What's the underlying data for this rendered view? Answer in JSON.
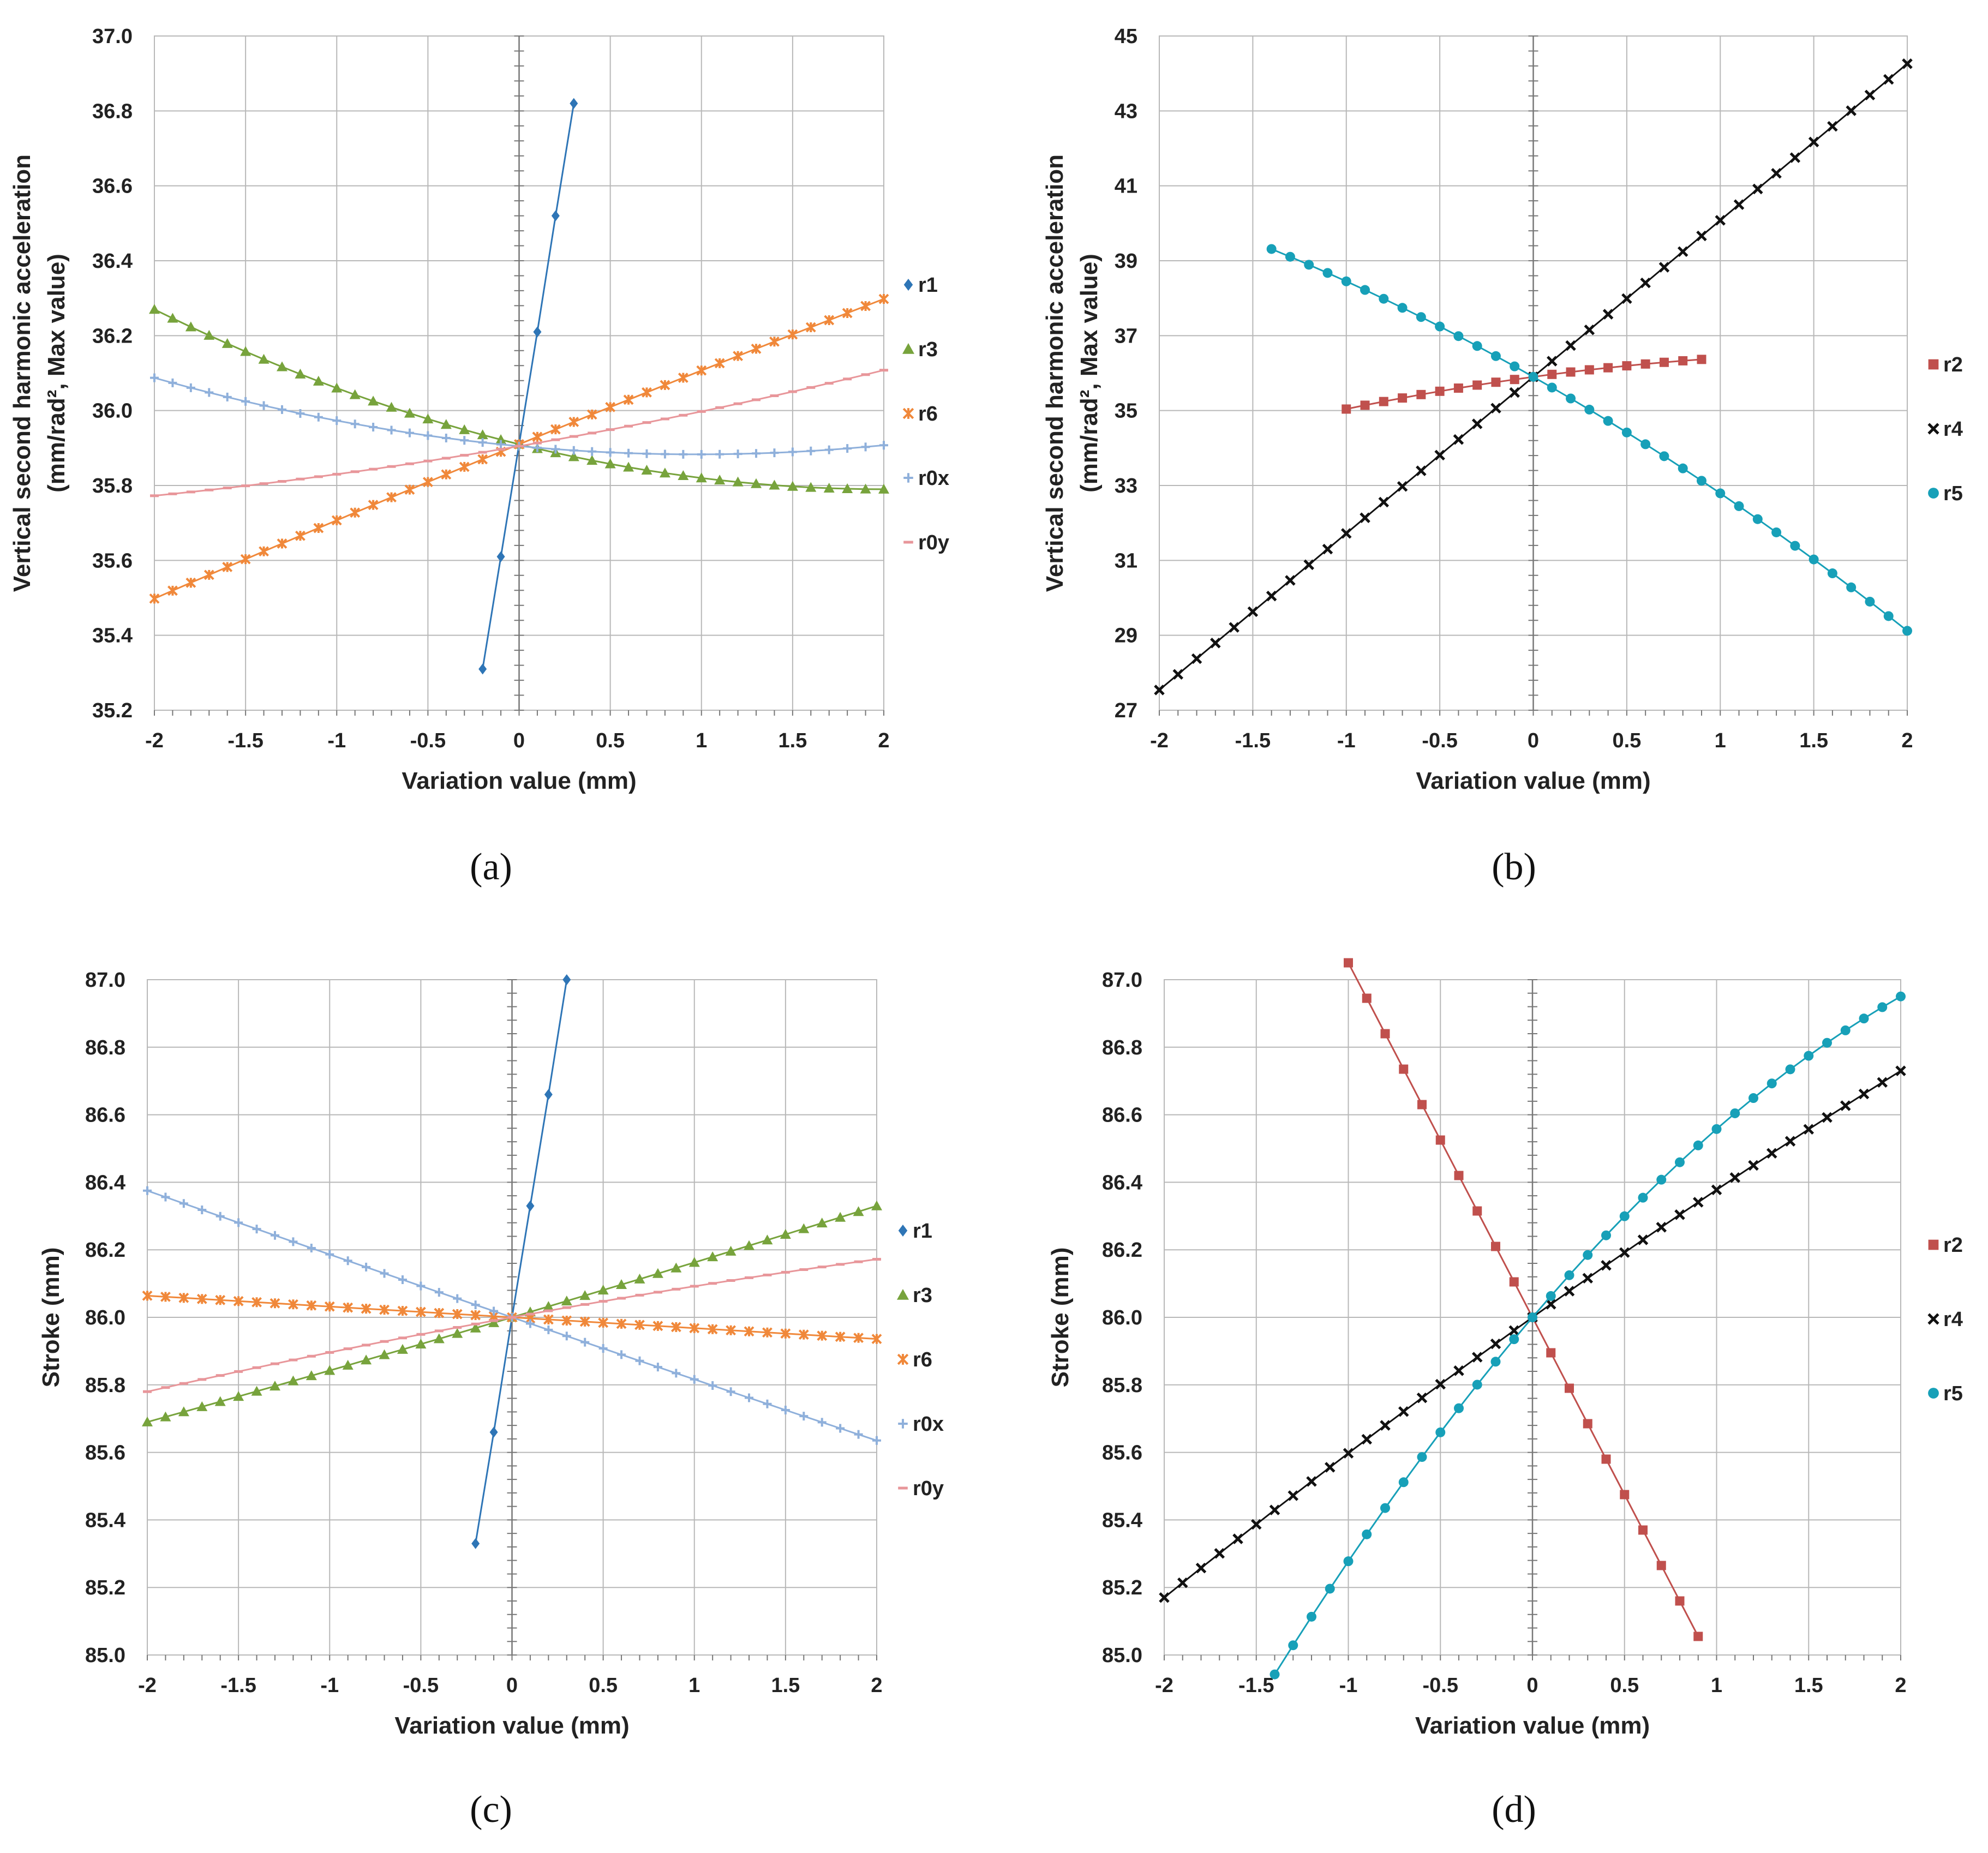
{
  "figure": {
    "panel_labels": [
      "(a)",
      "(b)",
      "(c)",
      "(d)"
    ]
  },
  "colors": {
    "r1": "#2e75b6",
    "r2": "#c0504d",
    "r3": "#77a33c",
    "r4": "#111111",
    "r5": "#17a0b8",
    "r6": "#f0883a",
    "r0x": "#8fb0db",
    "r0y": "#e8969a"
  },
  "chart_data": [
    {
      "type": "line",
      "panel": "(a)",
      "title": "",
      "xlabel": "Variation value (mm)",
      "ylabel": [
        "Vertical second harmonic acceleration",
        "(mm/rad², Max value)"
      ],
      "xlim": [
        -2,
        2
      ],
      "ylim": [
        35.2,
        37.0
      ],
      "xticks": [
        -2,
        -1.5,
        -1,
        -0.5,
        0,
        0.5,
        1,
        1.5,
        2
      ],
      "xtick_labels": [
        "-2",
        "-1.5",
        "-1",
        "-0.5",
        "0",
        "0.5",
        "1",
        "1.5",
        "2"
      ],
      "yticks": [
        35.2,
        35.4,
        35.6,
        35.8,
        36.0,
        36.2,
        36.4,
        36.6,
        36.8,
        37.0
      ],
      "ytick_labels": [
        "35.2",
        "35.4",
        "35.6",
        "35.8",
        "36.0",
        "36.2",
        "36.4",
        "36.6",
        "36.8",
        "37.0"
      ],
      "series": [
        {
          "name": "r1",
          "marker": "diamond",
          "x": [
            -0.2,
            -0.1,
            0,
            0.1,
            0.2,
            0.3
          ],
          "y": [
            35.31,
            35.61,
            35.91,
            36.21,
            36.52,
            36.82
          ]
        },
        {
          "name": "r3",
          "marker": "triangle",
          "start": -2,
          "end": 2,
          "step": 0.1,
          "fn": "quad",
          "params": {
            "y0": 35.91,
            "a": -0.12,
            "b": 0.03
          }
        },
        {
          "name": "r6",
          "marker": "star",
          "start": -2,
          "end": 2,
          "step": 0.1,
          "fn": "quad",
          "params": {
            "y0": 35.91,
            "a": 0.2,
            "b": -0.003
          }
        },
        {
          "name": "r0x",
          "marker": "plus",
          "start": -2,
          "end": 2,
          "step": 0.1,
          "fn": "quad",
          "params": {
            "y0": 35.905,
            "a": -0.045,
            "b": 0.0231
          }
        },
        {
          "name": "r0y",
          "marker": "dash",
          "start": -2,
          "end": 2,
          "step": 0.1,
          "fn": "quad",
          "params": {
            "y0": 35.905,
            "a": 0.0838,
            "b": 0.0088
          }
        }
      ],
      "legend": [
        "r1",
        "r3",
        "r6",
        "r0x",
        "r0y"
      ],
      "legend_position": "right"
    },
    {
      "type": "line",
      "panel": "(b)",
      "title": "",
      "xlabel": "Variation value (mm)",
      "ylabel": [
        "Vertical second harmonic acceleration",
        "(mm/rad², Max value)"
      ],
      "xlim": [
        -2,
        2
      ],
      "ylim": [
        27,
        45
      ],
      "xticks": [
        -2,
        -1.5,
        -1,
        -0.5,
        0,
        0.5,
        1,
        1.5,
        2
      ],
      "xtick_labels": [
        "-2",
        "-1.5",
        "-1",
        "-0.5",
        "0",
        "0.5",
        "1",
        "1.5",
        "2"
      ],
      "yticks": [
        27,
        29,
        31,
        33,
        35,
        37,
        39,
        41,
        43,
        45
      ],
      "ytick_labels": [
        "27",
        "29",
        "31",
        "33",
        "35",
        "37",
        "39",
        "41",
        "43",
        "45"
      ],
      "series": [
        {
          "name": "r2",
          "marker": "square",
          "start": -1,
          "end": 0.9,
          "step": 0.1,
          "fn": "quad",
          "params": {
            "y0": 35.9,
            "a": 0.68,
            "b": -0.18
          }
        },
        {
          "name": "r4",
          "marker": "x",
          "start": -2,
          "end": 2,
          "step": 0.1,
          "fn": "quad",
          "params": {
            "y0": 35.9,
            "a": 4.18,
            "b": 0
          }
        },
        {
          "name": "r5",
          "marker": "circle",
          "start": -1.4,
          "end": 2,
          "step": 0.1,
          "fn": "quad",
          "params": {
            "y0": 35.9,
            "a": -2.83,
            "b": -0.28
          }
        }
      ],
      "legend": [
        "r2",
        "r4",
        "r5"
      ],
      "legend_position": "right"
    },
    {
      "type": "line",
      "panel": "(c)",
      "title": "",
      "xlabel": "Variation value (mm)",
      "ylabel": [
        "Stroke (mm)"
      ],
      "xlim": [
        -2,
        2
      ],
      "ylim": [
        85.0,
        87.0
      ],
      "xticks": [
        -2,
        -1.5,
        -1,
        -0.5,
        0,
        0.5,
        1,
        1.5,
        2
      ],
      "xtick_labels": [
        "-2",
        "-1.5",
        "-1",
        "-0.5",
        "0",
        "0.5",
        "1",
        "1.5",
        "2"
      ],
      "yticks": [
        85.0,
        85.2,
        85.4,
        85.6,
        85.8,
        86.0,
        86.2,
        86.4,
        86.6,
        86.8,
        87.0
      ],
      "ytick_labels": [
        "85.0",
        "85.2",
        "85.4",
        "85.6",
        "85.8",
        "86.0",
        "86.2",
        "86.4",
        "86.6",
        "86.8",
        "87.0"
      ],
      "series": [
        {
          "name": "r1",
          "marker": "diamond",
          "x": [
            -0.2,
            -0.1,
            0,
            0.1,
            0.2,
            0.3
          ],
          "y": [
            85.33,
            85.66,
            86.0,
            86.33,
            86.66,
            87.0
          ]
        },
        {
          "name": "r3",
          "marker": "triangle",
          "start": -2,
          "end": 2,
          "step": 0.1,
          "fn": "quad",
          "params": {
            "y0": 86.0,
            "a": 0.16,
            "b": 0.0025
          }
        },
        {
          "name": "r6",
          "marker": "star",
          "start": -2,
          "end": 2,
          "step": 0.1,
          "fn": "quad",
          "params": {
            "y0": 86.0,
            "a": -0.032,
            "b": 0
          }
        },
        {
          "name": "r0x",
          "marker": "plus",
          "start": -2,
          "end": 2,
          "step": 0.1,
          "fn": "quad",
          "params": {
            "y0": 86.0,
            "a": -0.185,
            "b": 0.0013
          }
        },
        {
          "name": "r0y",
          "marker": "dash",
          "start": -2,
          "end": 2,
          "step": 0.1,
          "fn": "quad",
          "params": {
            "y0": 86.0,
            "a": 0.098,
            "b": -0.006
          }
        }
      ],
      "legend": [
        "r1",
        "r3",
        "r6",
        "r0x",
        "r0y"
      ],
      "legend_position": "right"
    },
    {
      "type": "line",
      "panel": "(d)",
      "title": "",
      "xlabel": "Variation value (mm)",
      "ylabel": [
        "Stroke (mm)"
      ],
      "xlim": [
        -2,
        2
      ],
      "ylim": [
        85.0,
        87.0
      ],
      "xticks": [
        -2,
        -1.5,
        -1,
        -0.5,
        0,
        0.5,
        1,
        1.5,
        2
      ],
      "xtick_labels": [
        "-2",
        "-1.5",
        "-1",
        "-0.5",
        "0",
        "0.5",
        "1",
        "1.5",
        "2"
      ],
      "yticks": [
        85.0,
        85.2,
        85.4,
        85.6,
        85.8,
        86.0,
        86.2,
        86.4,
        86.6,
        86.8,
        87.0
      ],
      "ytick_labels": [
        "85.0",
        "85.2",
        "85.4",
        "85.6",
        "85.8",
        "86.0",
        "86.2",
        "86.4",
        "86.6",
        "86.8",
        "87.0"
      ],
      "series": [
        {
          "name": "r2",
          "marker": "square",
          "start": -1,
          "end": 0.9,
          "step": 0.1,
          "fn": "quad",
          "params": {
            "y0": 86.0,
            "a": -1.05,
            "b": 0
          }
        },
        {
          "name": "r4",
          "marker": "x",
          "start": -2,
          "end": 2,
          "step": 0.1,
          "fn": "quad",
          "params": {
            "y0": 86.0,
            "a": 0.39,
            "b": -0.0125
          }
        },
        {
          "name": "r5",
          "marker": "circle",
          "start": -1.4,
          "end": 2,
          "step": 0.1,
          "fn": "quad",
          "params": {
            "y0": 86.0,
            "a": 0.64,
            "b": -0.0824
          }
        }
      ],
      "legend": [
        "r2",
        "r4",
        "r5"
      ],
      "legend_position": "right"
    }
  ]
}
